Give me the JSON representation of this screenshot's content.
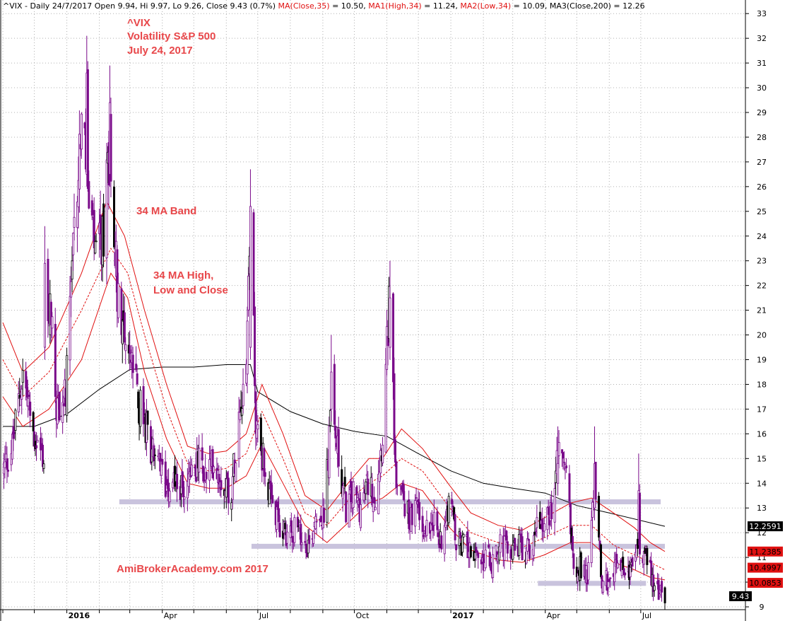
{
  "header": {
    "prefix": "^VIX - Daily 24/7/2017 Open 9.94, Hi 9.97, Lo 9.26, Close 9.43 (0.7%)",
    "ma": "MA(Close,35)",
    "ma_val": " = 10.50, ",
    "ma1": "MA1(High,34)",
    "ma1_val": " = 11.24, ",
    "ma2": "MA2(Low,34)",
    "ma2_val": " = 10.09, ",
    "ma3": "MA3(Close,200)",
    "ma3_val": " = 12.26"
  },
  "annotations": {
    "title1": "^VIX",
    "title2": "Volatility S&P 500",
    "title3": "July 24, 2017",
    "band": "34 MA Band",
    "hlc1": "34 MA High,",
    "hlc2": "Low and Close",
    "watermark": "AmiBrokerAcademy.com  2017"
  },
  "colors": {
    "candle": "#7a0a8a",
    "candle_alt": "#000000",
    "ma_red": "#e01010",
    "ma200": "#000000",
    "support": "#c9c3dd",
    "annot": "#e8474a",
    "grid": "#b0b0b0"
  },
  "chart_data": {
    "type": "candlestick",
    "ylim": [
      9,
      33.3
    ],
    "y_ticks": [
      9,
      10,
      11,
      12,
      13,
      14,
      15,
      16,
      17,
      18,
      19,
      20,
      21,
      22,
      23,
      24,
      25,
      26,
      27,
      28,
      29,
      30,
      31,
      32,
      33
    ],
    "x_labels": [
      "2016",
      "Apr",
      "Jul",
      "Oct",
      "2017",
      "Apr",
      "Jul"
    ],
    "x_label_dates": [
      "2016-01-01",
      "2016-04-01",
      "2016-07-01",
      "2016-10-01",
      "2017-01-01",
      "2017-04-01",
      "2017-07-01"
    ],
    "date_range": [
      "2015-11-01",
      "2017-07-24"
    ],
    "price_boxes": [
      {
        "label": "12.2591",
        "value": 12.2591,
        "bg": "#000000",
        "fg": "#ffffff"
      },
      {
        "label": "11.2385",
        "value": 11.2385,
        "bg": "#e01010",
        "fg": "#000000"
      },
      {
        "label": "10.4997",
        "value": 10.4997,
        "bg": "#e01010",
        "fg": "#000000"
      },
      {
        "label": "10.0853",
        "value": 10.0853,
        "bg": "#e01010",
        "fg": "#000000"
      },
      {
        "label": "9.43",
        "value": 9.43,
        "bg": "#000000",
        "fg": "#ffffff"
      }
    ],
    "support_lines": [
      {
        "value": 13.25,
        "from": "2016-02-20",
        "to": "2017-07-20"
      },
      {
        "value": 11.45,
        "from": "2016-06-25",
        "to": "2017-07-24"
      },
      {
        "value": 9.95,
        "from": "2017-03-25",
        "to": "2017-07-06"
      }
    ],
    "close_path": [
      [
        "2015-11-01",
        14.5
      ],
      [
        "2015-11-10",
        15.5
      ],
      [
        "2015-11-20",
        18.5
      ],
      [
        "2015-11-30",
        16.0
      ],
      [
        "2015-12-10",
        15.0
      ],
      [
        "2015-12-16",
        22.0
      ],
      [
        "2015-12-22",
        17.0
      ],
      [
        "2015-12-31",
        17.5
      ],
      [
        "2016-01-08",
        24.0
      ],
      [
        "2016-01-15",
        29.0
      ],
      [
        "2016-01-22",
        25.0
      ],
      [
        "2016-01-29",
        23.0
      ],
      [
        "2016-02-05",
        24.0
      ],
      [
        "2016-02-11",
        28.0
      ],
      [
        "2016-02-18",
        22.0
      ],
      [
        "2016-02-26",
        20.0
      ],
      [
        "2016-03-04",
        18.5
      ],
      [
        "2016-03-11",
        17.0
      ],
      [
        "2016-03-18",
        16.0
      ],
      [
        "2016-03-25",
        15.0
      ],
      [
        "2016-04-04",
        14.0
      ],
      [
        "2016-04-12",
        14.3
      ],
      [
        "2016-04-20",
        13.6
      ],
      [
        "2016-04-28",
        14.6
      ],
      [
        "2016-05-06",
        14.8
      ],
      [
        "2016-05-13",
        14.2
      ],
      [
        "2016-05-20",
        15.0
      ],
      [
        "2016-05-27",
        14.2
      ],
      [
        "2016-06-06",
        13.7
      ],
      [
        "2016-06-13",
        17.0
      ],
      [
        "2016-06-20",
        19.0
      ],
      [
        "2016-06-24",
        25.5
      ],
      [
        "2016-06-29",
        16.5
      ],
      [
        "2016-07-06",
        15.0
      ],
      [
        "2016-07-14",
        13.0
      ],
      [
        "2016-07-22",
        12.2
      ],
      [
        "2016-07-29",
        12.0
      ],
      [
        "2016-08-05",
        12.2
      ],
      [
        "2016-08-12",
        11.8
      ],
      [
        "2016-08-19",
        11.5
      ],
      [
        "2016-08-26",
        13.0
      ],
      [
        "2016-09-02",
        12.5
      ],
      [
        "2016-09-09",
        17.0
      ],
      [
        "2016-09-16",
        15.0
      ],
      [
        "2016-09-23",
        13.0
      ],
      [
        "2016-09-30",
        13.5
      ],
      [
        "2016-10-07",
        13.0
      ],
      [
        "2016-10-14",
        14.0
      ],
      [
        "2016-10-21",
        13.5
      ],
      [
        "2016-10-28",
        16.0
      ],
      [
        "2016-11-04",
        22.0
      ],
      [
        "2016-11-09",
        14.5
      ],
      [
        "2016-11-16",
        13.5
      ],
      [
        "2016-11-23",
        12.5
      ],
      [
        "2016-11-30",
        13.0
      ],
      [
        "2016-12-07",
        12.0
      ],
      [
        "2016-12-14",
        12.8
      ],
      [
        "2016-12-21",
        11.5
      ],
      [
        "2016-12-31",
        13.5
      ],
      [
        "2017-01-06",
        11.5
      ],
      [
        "2017-01-13",
        11.5
      ],
      [
        "2017-01-20",
        11.5
      ],
      [
        "2017-01-27",
        10.6
      ],
      [
        "2017-02-03",
        11.0
      ],
      [
        "2017-02-10",
        10.8
      ],
      [
        "2017-02-17",
        11.5
      ],
      [
        "2017-02-24",
        11.3
      ],
      [
        "2017-03-03",
        11.5
      ],
      [
        "2017-03-10",
        11.4
      ],
      [
        "2017-03-17",
        11.3
      ],
      [
        "2017-03-24",
        12.5
      ],
      [
        "2017-03-31",
        12.4
      ],
      [
        "2017-04-07",
        12.9
      ],
      [
        "2017-04-13",
        15.8
      ],
      [
        "2017-04-21",
        14.6
      ],
      [
        "2017-04-28",
        10.8
      ],
      [
        "2017-05-05",
        10.6
      ],
      [
        "2017-05-12",
        10.4
      ],
      [
        "2017-05-18",
        14.5
      ],
      [
        "2017-05-25",
        10.0
      ],
      [
        "2017-06-02",
        10.2
      ],
      [
        "2017-06-09",
        10.7
      ],
      [
        "2017-06-16",
        10.4
      ],
      [
        "2017-06-23",
        10.6
      ],
      [
        "2017-06-29",
        11.5
      ],
      [
        "2017-07-06",
        11.2
      ],
      [
        "2017-07-13",
        9.9
      ],
      [
        "2017-07-24",
        9.43
      ]
    ],
    "peaks": [
      {
        "date": "2015-12-11",
        "high": 24.4,
        "low": 19.0
      },
      {
        "date": "2016-01-20",
        "high": 32.1,
        "low": 26.0
      },
      {
        "date": "2016-02-11",
        "high": 30.9,
        "low": 26.0
      },
      {
        "date": "2016-06-24",
        "high": 26.7,
        "low": 19.0
      },
      {
        "date": "2016-09-09",
        "high": 20.0,
        "low": 16.5
      },
      {
        "date": "2016-11-04",
        "high": 23.0,
        "low": 19.0
      },
      {
        "date": "2017-04-13",
        "high": 16.3,
        "low": 13.5
      },
      {
        "date": "2017-05-18",
        "high": 16.3,
        "low": 12.5
      },
      {
        "date": "2017-06-29",
        "high": 15.2,
        "low": 11.5
      }
    ],
    "ma200": [
      [
        "2015-11-01",
        16.3
      ],
      [
        "2015-12-01",
        16.3
      ],
      [
        "2016-01-01",
        16.8
      ],
      [
        "2016-02-01",
        17.8
      ],
      [
        "2016-03-01",
        18.6
      ],
      [
        "2016-04-01",
        18.7
      ],
      [
        "2016-05-01",
        18.7
      ],
      [
        "2016-06-01",
        18.8
      ],
      [
        "2016-06-24",
        18.8
      ],
      [
        "2016-07-01",
        17.7
      ],
      [
        "2016-08-01",
        16.9
      ],
      [
        "2016-09-01",
        16.4
      ],
      [
        "2016-10-01",
        16.1
      ],
      [
        "2016-11-01",
        15.9
      ],
      [
        "2016-12-01",
        15.2
      ],
      [
        "2017-01-01",
        14.5
      ],
      [
        "2017-02-01",
        14.0
      ],
      [
        "2017-03-01",
        13.8
      ],
      [
        "2017-04-01",
        13.6
      ],
      [
        "2017-05-01",
        13.1
      ],
      [
        "2017-06-01",
        12.8
      ],
      [
        "2017-07-24",
        12.26
      ]
    ],
    "ma_high": [
      [
        "2015-11-01",
        20.5
      ],
      [
        "2015-11-20",
        18.5
      ],
      [
        "2015-12-15",
        19.5
      ],
      [
        "2016-01-15",
        22.5
      ],
      [
        "2016-02-08",
        25.4
      ],
      [
        "2016-02-25",
        24.0
      ],
      [
        "2016-03-15",
        21.0
      ],
      [
        "2016-04-05",
        18.0
      ],
      [
        "2016-04-25",
        15.5
      ],
      [
        "2016-05-15",
        15.2
      ],
      [
        "2016-06-01",
        15.3
      ],
      [
        "2016-06-20",
        16.0
      ],
      [
        "2016-07-05",
        18.0
      ],
      [
        "2016-07-25",
        16.0
      ],
      [
        "2016-08-15",
        13.5
      ],
      [
        "2016-09-05",
        12.9
      ],
      [
        "2016-09-25",
        14.0
      ],
      [
        "2016-10-15",
        15.0
      ],
      [
        "2016-10-28",
        15.0
      ],
      [
        "2016-11-15",
        16.2
      ],
      [
        "2016-12-05",
        15.4
      ],
      [
        "2016-12-31",
        13.9
      ],
      [
        "2017-01-20",
        12.8
      ],
      [
        "2017-02-15",
        12.3
      ],
      [
        "2017-03-10",
        12.1
      ],
      [
        "2017-03-31",
        12.6
      ],
      [
        "2017-04-25",
        13.2
      ],
      [
        "2017-05-15",
        13.4
      ],
      [
        "2017-06-05",
        12.8
      ],
      [
        "2017-06-25",
        12.2
      ],
      [
        "2017-07-10",
        11.6
      ],
      [
        "2017-07-24",
        11.24
      ]
    ],
    "ma_close": [
      [
        "2015-11-01",
        19.0
      ],
      [
        "2015-11-20",
        17.5
      ],
      [
        "2015-12-15",
        18.5
      ],
      [
        "2016-01-15",
        21.0
      ],
      [
        "2016-02-12",
        23.5
      ],
      [
        "2016-02-28",
        22.5
      ],
      [
        "2016-03-15",
        20.0
      ],
      [
        "2016-04-05",
        17.0
      ],
      [
        "2016-04-25",
        14.8
      ],
      [
        "2016-05-15",
        14.5
      ],
      [
        "2016-06-01",
        14.6
      ],
      [
        "2016-06-20",
        15.2
      ],
      [
        "2016-07-05",
        16.9
      ],
      [
        "2016-07-25",
        15.0
      ],
      [
        "2016-08-15",
        12.8
      ],
      [
        "2016-09-05",
        12.3
      ],
      [
        "2016-09-25",
        13.3
      ],
      [
        "2016-10-15",
        14.0
      ],
      [
        "2016-10-28",
        14.3
      ],
      [
        "2016-11-15",
        15.0
      ],
      [
        "2016-12-05",
        14.5
      ],
      [
        "2016-12-31",
        13.0
      ],
      [
        "2017-01-20",
        12.0
      ],
      [
        "2017-02-15",
        11.6
      ],
      [
        "2017-03-10",
        11.4
      ],
      [
        "2017-03-31",
        11.8
      ],
      [
        "2017-04-25",
        12.3
      ],
      [
        "2017-05-15",
        12.3
      ],
      [
        "2017-06-05",
        11.5
      ],
      [
        "2017-06-25",
        11.1
      ],
      [
        "2017-07-10",
        10.8
      ],
      [
        "2017-07-24",
        10.5
      ]
    ],
    "ma_low": [
      [
        "2015-11-01",
        17.5
      ],
      [
        "2015-11-20",
        16.3
      ],
      [
        "2015-12-15",
        17.0
      ],
      [
        "2016-01-15",
        19.0
      ],
      [
        "2016-02-12",
        22.5
      ],
      [
        "2016-02-28",
        21.5
      ],
      [
        "2016-03-15",
        18.5
      ],
      [
        "2016-04-05",
        15.8
      ],
      [
        "2016-04-25",
        14.0
      ],
      [
        "2016-05-15",
        13.8
      ],
      [
        "2016-06-01",
        13.8
      ],
      [
        "2016-06-20",
        14.3
      ],
      [
        "2016-07-05",
        15.6
      ],
      [
        "2016-07-25",
        14.0
      ],
      [
        "2016-08-15",
        12.3
      ],
      [
        "2016-09-05",
        11.6
      ],
      [
        "2016-09-25",
        12.4
      ],
      [
        "2016-10-15",
        13.2
      ],
      [
        "2016-10-28",
        13.4
      ],
      [
        "2016-11-15",
        14.0
      ],
      [
        "2016-12-05",
        13.7
      ],
      [
        "2016-12-31",
        12.2
      ],
      [
        "2017-01-20",
        11.3
      ],
      [
        "2017-02-15",
        10.9
      ],
      [
        "2017-03-10",
        10.8
      ],
      [
        "2017-03-31",
        11.1
      ],
      [
        "2017-04-25",
        11.6
      ],
      [
        "2017-05-15",
        11.6
      ],
      [
        "2017-06-05",
        10.8
      ],
      [
        "2017-06-25",
        10.5
      ],
      [
        "2017-07-10",
        10.2
      ],
      [
        "2017-07-24",
        10.09
      ]
    ]
  }
}
